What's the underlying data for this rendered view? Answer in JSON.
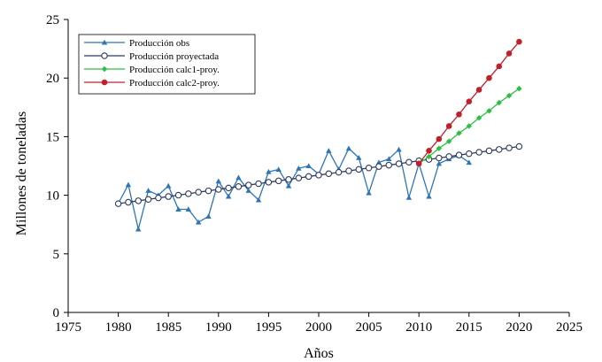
{
  "chart_data": {
    "type": "line",
    "xlabel": "Años",
    "ylabel": "Millones  de toneladas",
    "xlim": [
      1975,
      2025
    ],
    "ylim": [
      0,
      25
    ],
    "xticks": [
      "1975",
      "1980",
      "1985",
      "1990",
      "1995",
      "2000",
      "2005",
      "2010",
      "2015",
      "2020",
      "2025"
    ],
    "yticks": [
      "0",
      "5",
      "10",
      "15",
      "20",
      "25"
    ],
    "legend_position": "top-left",
    "grid": false,
    "series": [
      {
        "name": "Producción obs",
        "color": "#2E75B6",
        "marker": "triangle",
        "x": [
          1980,
          1981,
          1982,
          1983,
          1984,
          1985,
          1986,
          1987,
          1988,
          1989,
          1990,
          1991,
          1992,
          1993,
          1994,
          1995,
          1996,
          1997,
          1998,
          1999,
          2000,
          2001,
          2002,
          2003,
          2004,
          2005,
          2006,
          2007,
          2008,
          2009,
          2010,
          2011,
          2012,
          2013,
          2014,
          2015
        ],
        "y": [
          9.3,
          10.9,
          7.1,
          10.4,
          10.0,
          10.8,
          8.8,
          8.8,
          7.7,
          8.2,
          11.2,
          9.9,
          11.5,
          10.4,
          9.6,
          12.0,
          12.2,
          10.8,
          12.3,
          12.5,
          11.8,
          13.8,
          12.2,
          14.0,
          13.2,
          10.2,
          12.8,
          13.1,
          13.9,
          9.8,
          12.7,
          9.9,
          12.7,
          13.1,
          13.4,
          12.8
        ]
      },
      {
        "name": "Producción proyectada",
        "color": "#2F3B5E",
        "marker": "open-circle",
        "x": [
          1980,
          1981,
          1982,
          1983,
          1984,
          1985,
          1986,
          1987,
          1988,
          1989,
          1990,
          1991,
          1992,
          1993,
          1994,
          1995,
          1996,
          1997,
          1998,
          1999,
          2000,
          2001,
          2002,
          2003,
          2004,
          2005,
          2006,
          2007,
          2008,
          2009,
          2010,
          2011,
          2012,
          2013,
          2014,
          2015,
          2016,
          2017,
          2018,
          2019,
          2020
        ],
        "y": [
          9.28,
          9.4,
          9.53,
          9.65,
          9.77,
          9.89,
          10.01,
          10.13,
          10.26,
          10.38,
          10.5,
          10.62,
          10.74,
          10.87,
          10.99,
          11.11,
          11.23,
          11.35,
          11.47,
          11.6,
          11.72,
          11.84,
          11.96,
          12.08,
          12.21,
          12.33,
          12.45,
          12.57,
          12.69,
          12.82,
          12.94,
          13.06,
          13.18,
          13.3,
          13.43,
          13.55,
          13.67,
          13.79,
          13.91,
          14.04,
          14.16
        ]
      },
      {
        "name": "Producción calc1-proy.",
        "color": "#2DBE45",
        "marker": "diamond",
        "x": [
          2010,
          2011,
          2012,
          2013,
          2014,
          2015,
          2016,
          2017,
          2018,
          2019,
          2020
        ],
        "y": [
          12.7,
          13.3,
          14.0,
          14.6,
          15.3,
          15.9,
          16.6,
          17.2,
          17.9,
          18.5,
          19.1
        ]
      },
      {
        "name": "Producción calc2-proy.",
        "color": "#C0202A",
        "marker": "filled-circle",
        "x": [
          2010,
          2011,
          2012,
          2013,
          2014,
          2015,
          2016,
          2017,
          2018,
          2019,
          2020
        ],
        "y": [
          12.7,
          13.8,
          14.8,
          15.9,
          16.9,
          18.0,
          19.0,
          20.0,
          21.0,
          22.1,
          23.1
        ]
      }
    ]
  }
}
